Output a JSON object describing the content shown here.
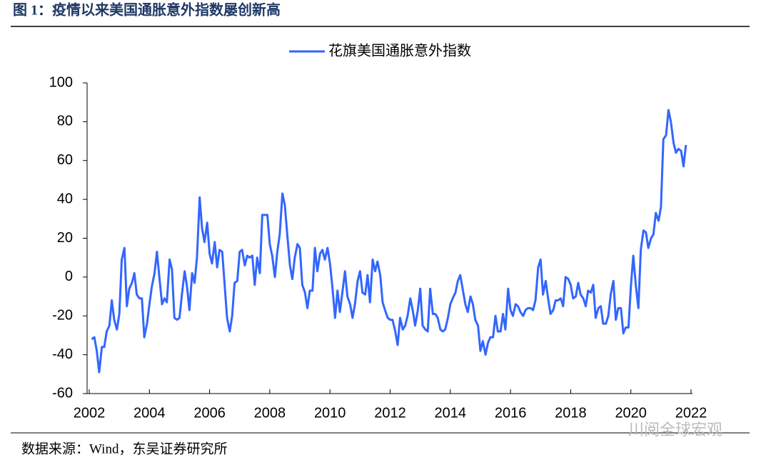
{
  "title": "图 1：疫情以来美国通胀意外指数屡创新高",
  "source": "数据来源：Wind，东吴证券研究所",
  "watermark": "川阅全球宏观",
  "chart_data": {
    "type": "line",
    "xlim": [
      2002,
      2022
    ],
    "xticks": [
      2002,
      2004,
      2006,
      2008,
      2010,
      2012,
      2014,
      2016,
      2018,
      2020,
      2022
    ],
    "ylim": [
      -60,
      100
    ],
    "yticks": [
      -60,
      -40,
      -20,
      0,
      20,
      40,
      60,
      80,
      100
    ],
    "legend": "top",
    "x": [
      2002.08,
      2002.17,
      2002.25,
      2002.33,
      2002.42,
      2002.5,
      2002.58,
      2002.67,
      2002.75,
      2002.83,
      2002.92,
      2003.0,
      2003.08,
      2003.17,
      2003.25,
      2003.33,
      2003.42,
      2003.5,
      2003.58,
      2003.67,
      2003.75,
      2003.83,
      2003.92,
      2004.0,
      2004.08,
      2004.17,
      2004.25,
      2004.33,
      2004.42,
      2004.5,
      2004.58,
      2004.67,
      2004.75,
      2004.83,
      2004.92,
      2005.0,
      2005.08,
      2005.17,
      2005.25,
      2005.33,
      2005.42,
      2005.5,
      2005.58,
      2005.67,
      2005.75,
      2005.83,
      2005.92,
      2006.0,
      2006.08,
      2006.17,
      2006.25,
      2006.33,
      2006.42,
      2006.5,
      2006.58,
      2006.67,
      2006.75,
      2006.83,
      2006.92,
      2007.0,
      2007.08,
      2007.17,
      2007.25,
      2007.33,
      2007.42,
      2007.5,
      2007.58,
      2007.67,
      2007.75,
      2007.83,
      2007.92,
      2008.0,
      2008.08,
      2008.17,
      2008.25,
      2008.33,
      2008.42,
      2008.5,
      2008.58,
      2008.67,
      2008.75,
      2008.83,
      2008.92,
      2009.0,
      2009.08,
      2009.17,
      2009.25,
      2009.33,
      2009.42,
      2009.5,
      2009.58,
      2009.67,
      2009.75,
      2009.83,
      2009.92,
      2010.0,
      2010.08,
      2010.17,
      2010.25,
      2010.33,
      2010.42,
      2010.5,
      2010.58,
      2010.67,
      2010.75,
      2010.83,
      2010.92,
      2011.0,
      2011.08,
      2011.17,
      2011.25,
      2011.33,
      2011.42,
      2011.5,
      2011.58,
      2011.67,
      2011.75,
      2011.83,
      2011.92,
      2012.0,
      2012.08,
      2012.17,
      2012.25,
      2012.33,
      2012.42,
      2012.5,
      2012.58,
      2012.67,
      2012.75,
      2012.83,
      2012.92,
      2013.0,
      2013.08,
      2013.17,
      2013.25,
      2013.33,
      2013.42,
      2013.5,
      2013.58,
      2013.67,
      2013.75,
      2013.83,
      2013.92,
      2014.0,
      2014.08,
      2014.17,
      2014.25,
      2014.33,
      2014.42,
      2014.5,
      2014.58,
      2014.67,
      2014.75,
      2014.83,
      2014.92,
      2015.0,
      2015.08,
      2015.17,
      2015.25,
      2015.33,
      2015.42,
      2015.5,
      2015.58,
      2015.67,
      2015.75,
      2015.83,
      2015.92,
      2016.0,
      2016.08,
      2016.17,
      2016.25,
      2016.33,
      2016.42,
      2016.5,
      2016.58,
      2016.67,
      2016.75,
      2016.83,
      2016.92,
      2017.0,
      2017.08,
      2017.17,
      2017.25,
      2017.33,
      2017.42,
      2017.5,
      2017.58,
      2017.67,
      2017.75,
      2017.83,
      2017.92,
      2018.0,
      2018.08,
      2018.17,
      2018.25,
      2018.33,
      2018.42,
      2018.5,
      2018.58,
      2018.67,
      2018.75,
      2018.83,
      2018.92,
      2019.0,
      2019.08,
      2019.17,
      2019.25,
      2019.33,
      2019.42,
      2019.5,
      2019.58,
      2019.67,
      2019.75,
      2019.83,
      2019.92,
      2020.0,
      2020.08,
      2020.17,
      2020.25,
      2020.33,
      2020.42,
      2020.5,
      2020.58,
      2020.67,
      2020.75,
      2020.83,
      2020.92,
      2021.0,
      2021.08,
      2021.17,
      2021.25,
      2021.33,
      2021.42,
      2021.5,
      2021.58,
      2021.67,
      2021.75,
      2021.83
    ],
    "series": [
      {
        "name": "花旗美国通胀意外指数",
        "color": "#3366ff",
        "values": [
          -32,
          -31,
          -38,
          -49,
          -36,
          -36,
          -28,
          -25,
          -12,
          -22,
          -27,
          -19,
          9,
          15,
          -15,
          -6,
          -3,
          2,
          -9,
          -11,
          -11,
          -31,
          -24,
          -14,
          -5,
          2,
          13,
          0,
          -14,
          -11,
          -13,
          9,
          4,
          -21,
          -22,
          -21,
          -9,
          3,
          -5,
          -17,
          2,
          -3,
          10,
          41,
          25,
          18,
          28,
          12,
          7,
          18,
          5,
          14,
          13,
          -4,
          -21,
          -28,
          -20,
          -3,
          -2,
          13,
          14,
          6,
          11,
          10,
          11,
          -4,
          10,
          2,
          32,
          32,
          32,
          17,
          11,
          0,
          13,
          22,
          43,
          37,
          22,
          6,
          -1,
          10,
          17,
          15,
          -4,
          -8,
          -16,
          -7,
          -7,
          15,
          3,
          12,
          14,
          9,
          15,
          7,
          -5,
          -21,
          -7,
          -18,
          -7,
          3,
          -10,
          -14,
          -21,
          -14,
          -2,
          3,
          -8,
          -9,
          1,
          -13,
          9,
          3,
          8,
          1,
          -13,
          -17,
          -21,
          -22,
          -22,
          -28,
          -35,
          -21,
          -27,
          -25,
          -20,
          -11,
          -17,
          -25,
          -17,
          -6,
          -25,
          -27,
          -28,
          -6,
          -19,
          -19,
          -21,
          -27,
          -28,
          -27,
          -21,
          -14,
          -11,
          -8,
          -2,
          1,
          -7,
          -14,
          -18,
          -10,
          -14,
          -22,
          -25,
          -38,
          -33,
          -40,
          -34,
          -31,
          -31,
          -20,
          -28,
          -28,
          -19,
          -27,
          -6,
          -17,
          -20,
          -14,
          -15,
          -18,
          -20,
          -17,
          -16,
          -16,
          -17,
          -12,
          5,
          9,
          -9,
          -2,
          -11,
          -19,
          -17,
          -12,
          -12,
          -11,
          -15,
          0,
          -1,
          -4,
          -11,
          -10,
          -3,
          -9,
          -11,
          -15,
          -7,
          -8,
          -4,
          -21,
          -16,
          -15,
          -24,
          -24,
          -20,
          -9,
          -2,
          -22,
          -16,
          -16,
          -29,
          -26,
          -26,
          -5,
          11,
          -5,
          -16,
          14,
          24,
          23,
          15,
          20,
          22,
          33,
          29,
          36,
          71,
          73,
          86,
          80,
          69,
          64,
          66,
          65,
          57,
          68
        ]
      }
    ]
  }
}
